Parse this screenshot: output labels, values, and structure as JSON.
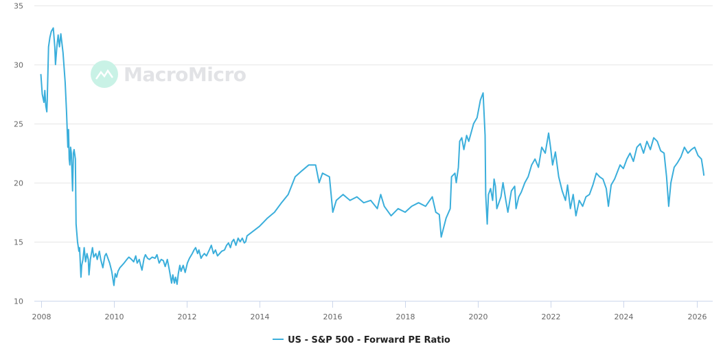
{
  "logo": {
    "text": "MacroMicro",
    "icon": "chart-line-icon",
    "color": "#c9f2e6"
  },
  "colors": {
    "series": "#3aaedb",
    "grid": "#e6e6e6",
    "text": "#666666"
  },
  "chart_data": {
    "type": "line",
    "title": "",
    "xlabel": "",
    "ylabel": "",
    "grid": "horizontal",
    "legend_placement": "bottom",
    "ylim": [
      10,
      35
    ],
    "yticks": [
      "10",
      "15",
      "20",
      "25",
      "30",
      "35"
    ],
    "xlim": [
      "2008-01-01",
      "2026-05-01"
    ],
    "xticks": [
      "2008",
      "2010",
      "2012",
      "2014",
      "2016",
      "2018",
      "2020",
      "2022",
      "2024",
      "2026"
    ],
    "series": [
      {
        "name": "US - S&P 500 - Forward PE Ratio",
        "points": [
          [
            "2008-01-01",
            29.2
          ],
          [
            "2008-01-15",
            27.5
          ],
          [
            "2008-02-01",
            26.8
          ],
          [
            "2008-02-10",
            27.8
          ],
          [
            "2008-02-20",
            26.5
          ],
          [
            "2008-03-01",
            26.0
          ],
          [
            "2008-03-05",
            27.0
          ],
          [
            "2008-03-18",
            31.5
          ],
          [
            "2008-04-01",
            32.3
          ],
          [
            "2008-04-15",
            32.8
          ],
          [
            "2008-05-05",
            33.1
          ],
          [
            "2008-05-20",
            31.5
          ],
          [
            "2008-05-27",
            30.0
          ],
          [
            "2008-06-10",
            31.5
          ],
          [
            "2008-06-23",
            32.5
          ],
          [
            "2008-07-06",
            31.5
          ],
          [
            "2008-07-20",
            32.6
          ],
          [
            "2008-08-11",
            31.0
          ],
          [
            "2008-09-01",
            28.5
          ],
          [
            "2008-09-15",
            26.0
          ],
          [
            "2008-09-28",
            23.0
          ],
          [
            "2008-10-05",
            24.5
          ],
          [
            "2008-10-12",
            22.0
          ],
          [
            "2008-10-18",
            21.5
          ],
          [
            "2008-10-26",
            23.0
          ],
          [
            "2008-11-02",
            22.5
          ],
          [
            "2008-11-15",
            19.3
          ],
          [
            "2008-11-23",
            22.5
          ],
          [
            "2008-11-30",
            22.8
          ],
          [
            "2008-12-13",
            22.0
          ],
          [
            "2008-12-20",
            16.5
          ],
          [
            "2009-01-03",
            15.0
          ],
          [
            "2009-01-17",
            14.2
          ],
          [
            "2009-01-24",
            14.5
          ],
          [
            "2009-02-07",
            12.0
          ],
          [
            "2009-02-14",
            13.0
          ],
          [
            "2009-02-27",
            13.5
          ],
          [
            "2009-03-11",
            14.5
          ],
          [
            "2009-03-25",
            13.3
          ],
          [
            "2009-04-08",
            14.0
          ],
          [
            "2009-04-21",
            13.5
          ],
          [
            "2009-04-28",
            12.2
          ],
          [
            "2009-05-12",
            13.5
          ],
          [
            "2009-06-02",
            14.5
          ],
          [
            "2009-06-15",
            13.7
          ],
          [
            "2009-07-06",
            14.0
          ],
          [
            "2009-07-20",
            13.5
          ],
          [
            "2009-08-10",
            14.2
          ],
          [
            "2009-08-24",
            13.5
          ],
          [
            "2009-09-14",
            12.8
          ],
          [
            "2009-10-04",
            13.8
          ],
          [
            "2009-10-18",
            14.0
          ],
          [
            "2009-11-08",
            13.5
          ],
          [
            "2009-11-21",
            13.2
          ],
          [
            "2009-12-12",
            12.5
          ],
          [
            "2010-01-03",
            11.3
          ],
          [
            "2010-01-16",
            12.3
          ],
          [
            "2010-01-30",
            12.0
          ],
          [
            "2010-02-13",
            12.5
          ],
          [
            "2010-03-04",
            12.8
          ],
          [
            "2010-03-25",
            13.0
          ],
          [
            "2010-04-15",
            13.2
          ],
          [
            "2010-05-12",
            13.5
          ],
          [
            "2010-06-02",
            13.7
          ],
          [
            "2010-06-29",
            13.5
          ],
          [
            "2010-07-20",
            13.3
          ],
          [
            "2010-08-10",
            13.8
          ],
          [
            "2010-08-24",
            13.2
          ],
          [
            "2010-09-14",
            13.5
          ],
          [
            "2010-09-28",
            13.0
          ],
          [
            "2010-10-11",
            12.6
          ],
          [
            "2010-11-01",
            13.6
          ],
          [
            "2010-11-15",
            13.9
          ],
          [
            "2010-12-06",
            13.6
          ],
          [
            "2010-12-25",
            13.5
          ],
          [
            "2011-01-22",
            13.7
          ],
          [
            "2011-02-19",
            13.6
          ],
          [
            "2011-03-10",
            13.9
          ],
          [
            "2011-04-01",
            13.2
          ],
          [
            "2011-04-22",
            13.5
          ],
          [
            "2011-05-13",
            13.4
          ],
          [
            "2011-06-01",
            12.9
          ],
          [
            "2011-06-22",
            13.5
          ],
          [
            "2011-07-13",
            12.6
          ],
          [
            "2011-08-04",
            11.5
          ],
          [
            "2011-08-16",
            12.2
          ],
          [
            "2011-09-01",
            11.5
          ],
          [
            "2011-09-13",
            12.0
          ],
          [
            "2011-09-28",
            11.4
          ],
          [
            "2011-10-10",
            12.3
          ],
          [
            "2011-10-25",
            13.0
          ],
          [
            "2011-11-07",
            12.5
          ],
          [
            "2011-11-28",
            13.0
          ],
          [
            "2011-12-18",
            12.4
          ],
          [
            "2012-01-09",
            13.2
          ],
          [
            "2012-01-30",
            13.6
          ],
          [
            "2012-02-27",
            14.0
          ],
          [
            "2012-03-16",
            14.3
          ],
          [
            "2012-04-01",
            14.5
          ],
          [
            "2012-04-21",
            14.0
          ],
          [
            "2012-05-04",
            14.3
          ],
          [
            "2012-05-25",
            13.6
          ],
          [
            "2012-06-08",
            13.8
          ],
          [
            "2012-06-28",
            14.0
          ],
          [
            "2012-07-19",
            13.8
          ],
          [
            "2012-08-16",
            14.3
          ],
          [
            "2012-09-06",
            14.7
          ],
          [
            "2012-09-27",
            14.0
          ],
          [
            "2012-10-17",
            14.3
          ],
          [
            "2012-11-07",
            13.8
          ],
          [
            "2012-11-28",
            14.0
          ],
          [
            "2012-12-19",
            14.2
          ],
          [
            "2013-01-16",
            14.3
          ],
          [
            "2013-02-06",
            14.7
          ],
          [
            "2013-02-25",
            14.9
          ],
          [
            "2013-03-16",
            14.5
          ],
          [
            "2013-04-01",
            15.0
          ],
          [
            "2013-04-19",
            15.2
          ],
          [
            "2013-05-10",
            14.7
          ],
          [
            "2013-06-01",
            15.3
          ],
          [
            "2013-06-22",
            15.0
          ],
          [
            "2013-07-13",
            15.3
          ],
          [
            "2013-08-02",
            14.9
          ],
          [
            "2013-08-16",
            15.0
          ],
          [
            "2013-08-30",
            15.5
          ],
          [
            "2014-01-01",
            16.3
          ],
          [
            "2014-03-22",
            17.0
          ],
          [
            "2014-06-01",
            17.5
          ],
          [
            "2014-08-10",
            18.3
          ],
          [
            "2014-10-16",
            19.0
          ],
          [
            "2014-12-25",
            20.5
          ],
          [
            "2015-03-01",
            21.0
          ],
          [
            "2015-05-10",
            21.5
          ],
          [
            "2015-07-18",
            21.5
          ],
          [
            "2015-08-22",
            20.0
          ],
          [
            "2015-09-25",
            20.8
          ],
          [
            "2015-12-03",
            20.5
          ],
          [
            "2016-01-06",
            17.5
          ],
          [
            "2016-02-10",
            18.5
          ],
          [
            "2016-04-18",
            19.0
          ],
          [
            "2016-06-27",
            18.5
          ],
          [
            "2016-09-04",
            18.8
          ],
          [
            "2016-11-12",
            18.3
          ],
          [
            "2017-01-21",
            18.5
          ],
          [
            "2017-03-28",
            17.8
          ],
          [
            "2017-05-01",
            19.0
          ],
          [
            "2017-06-06",
            18.0
          ],
          [
            "2017-08-13",
            17.2
          ],
          [
            "2017-10-22",
            17.8
          ],
          [
            "2018-01-01",
            17.5
          ],
          [
            "2018-03-07",
            18.0
          ],
          [
            "2018-05-15",
            18.3
          ],
          [
            "2018-07-24",
            18.0
          ],
          [
            "2018-09-30",
            18.8
          ],
          [
            "2018-11-04",
            17.5
          ],
          [
            "2018-12-09",
            17.3
          ],
          [
            "2018-12-28",
            15.4
          ],
          [
            "2019-02-15",
            17.0
          ],
          [
            "2019-03-28",
            17.8
          ],
          [
            "2019-04-10",
            20.5
          ],
          [
            "2019-05-15",
            20.8
          ],
          [
            "2019-05-28",
            20.0
          ],
          [
            "2019-06-18",
            21.3
          ],
          [
            "2019-07-01",
            23.5
          ],
          [
            "2019-07-22",
            23.8
          ],
          [
            "2019-08-12",
            22.8
          ],
          [
            "2019-09-09",
            24.0
          ],
          [
            "2019-09-30",
            23.5
          ],
          [
            "2019-11-18",
            25.0
          ],
          [
            "2019-12-22",
            25.5
          ],
          [
            "2020-01-25",
            27.0
          ],
          [
            "2020-02-21",
            27.6
          ],
          [
            "2020-03-12",
            24.0
          ],
          [
            "2020-03-18",
            19.0
          ],
          [
            "2020-04-02",
            16.5
          ],
          [
            "2020-04-15",
            19.0
          ],
          [
            "2020-05-06",
            19.5
          ],
          [
            "2020-05-27",
            18.5
          ],
          [
            "2020-06-10",
            20.3
          ],
          [
            "2020-06-24",
            19.7
          ],
          [
            "2020-07-08",
            17.8
          ],
          [
            "2020-08-18",
            18.8
          ],
          [
            "2020-09-08",
            20.0
          ],
          [
            "2020-10-06",
            18.5
          ],
          [
            "2020-10-27",
            17.5
          ],
          [
            "2020-12-01",
            19.3
          ],
          [
            "2021-01-03",
            19.7
          ],
          [
            "2021-01-17",
            17.8
          ],
          [
            "2021-02-13",
            18.8
          ],
          [
            "2021-03-10",
            19.2
          ],
          [
            "2021-04-15",
            20.0
          ],
          [
            "2021-05-18",
            20.5
          ],
          [
            "2021-06-22",
            21.5
          ],
          [
            "2021-07-26",
            22.0
          ],
          [
            "2021-08-29",
            21.3
          ],
          [
            "2021-10-01",
            23.0
          ],
          [
            "2021-11-05",
            22.5
          ],
          [
            "2021-12-09",
            24.2
          ],
          [
            "2021-12-28",
            23.0
          ],
          [
            "2022-01-18",
            21.5
          ],
          [
            "2022-02-15",
            22.6
          ],
          [
            "2022-03-20",
            20.5
          ],
          [
            "2022-04-24",
            19.3
          ],
          [
            "2022-05-27",
            18.5
          ],
          [
            "2022-06-17",
            19.8
          ],
          [
            "2022-07-15",
            17.8
          ],
          [
            "2022-08-12",
            19.0
          ],
          [
            "2022-09-09",
            17.2
          ],
          [
            "2022-10-12",
            18.5
          ],
          [
            "2022-11-15",
            18.0
          ],
          [
            "2022-12-18",
            18.8
          ],
          [
            "2023-01-22",
            19.0
          ],
          [
            "2023-02-26",
            19.8
          ],
          [
            "2023-04-01",
            20.8
          ],
          [
            "2023-05-04",
            20.5
          ],
          [
            "2023-06-07",
            20.3
          ],
          [
            "2023-07-10",
            19.5
          ],
          [
            "2023-07-31",
            18.0
          ],
          [
            "2023-08-28",
            19.8
          ],
          [
            "2023-10-01",
            20.3
          ],
          [
            "2023-11-25",
            21.5
          ],
          [
            "2023-12-28",
            21.2
          ],
          [
            "2024-02-01",
            22.0
          ],
          [
            "2024-03-04",
            22.5
          ],
          [
            "2024-04-07",
            21.8
          ],
          [
            "2024-05-12",
            23.0
          ],
          [
            "2024-06-15",
            23.3
          ],
          [
            "2024-07-18",
            22.5
          ],
          [
            "2024-08-21",
            23.5
          ],
          [
            "2024-09-24",
            22.8
          ],
          [
            "2024-10-28",
            23.8
          ],
          [
            "2024-12-03",
            23.5
          ],
          [
            "2025-01-06",
            22.7
          ],
          [
            "2025-02-09",
            22.5
          ],
          [
            "2025-03-06",
            20.5
          ],
          [
            "2025-03-27",
            18.0
          ],
          [
            "2025-04-18",
            20.0
          ],
          [
            "2025-05-21",
            21.3
          ],
          [
            "2025-06-24",
            21.7
          ],
          [
            "2025-07-28",
            22.2
          ],
          [
            "2025-09-01",
            23.0
          ],
          [
            "2025-10-06",
            22.5
          ],
          [
            "2025-11-09",
            22.8
          ],
          [
            "2025-12-12",
            23.0
          ],
          [
            "2026-01-15",
            22.3
          ],
          [
            "2026-02-18",
            22.0
          ],
          [
            "2026-03-09",
            21.0
          ],
          [
            "2026-03-15",
            20.6
          ]
        ]
      }
    ]
  }
}
